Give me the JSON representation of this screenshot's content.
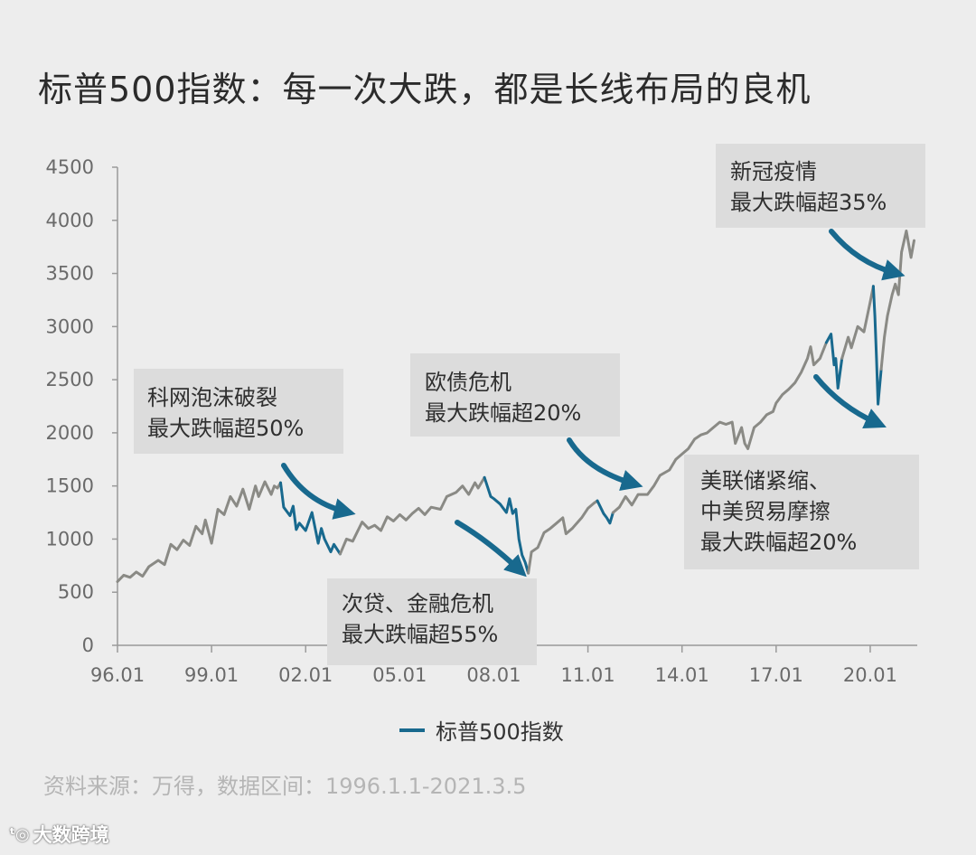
{
  "title": "标普500指数：每一次大跌，都是长线布局的良机",
  "source": "资料来源：万得，数据区间：1996.1.1-2021.3.5",
  "watermark": {
    "logo": "ᵗ◎",
    "text": "大数跨境"
  },
  "colors": {
    "background": "#ededed",
    "line": "#8a8a85",
    "crash": "#18698e",
    "box": "#dcdcdc",
    "arrow": "#18698e"
  },
  "chart_data": {
    "type": "line",
    "title": "标普500指数：每一次大跌，都是长线布局的良机",
    "xlabel": "",
    "ylabel": "",
    "xlim": [
      1996.0,
      2021.5
    ],
    "ylim": [
      0,
      4500
    ],
    "yticks": [
      0,
      500,
      1000,
      1500,
      2000,
      2500,
      3000,
      3500,
      4000,
      4500
    ],
    "xticks": [
      {
        "value": 1996.0,
        "label": "96.01"
      },
      {
        "value": 1999.0,
        "label": "99.01"
      },
      {
        "value": 2002.0,
        "label": "02.01"
      },
      {
        "value": 2005.0,
        "label": "05.01"
      },
      {
        "value": 2008.0,
        "label": "08.01"
      },
      {
        "value": 2011.0,
        "label": "11.01"
      },
      {
        "value": 2014.0,
        "label": "14.01"
      },
      {
        "value": 2017.0,
        "label": "17.01"
      },
      {
        "value": 2020.0,
        "label": "20.01"
      }
    ],
    "legend": {
      "label": "标普500指数",
      "position": "bottom-center"
    },
    "series": [
      {
        "name": "标普500指数",
        "points": [
          [
            1996.0,
            600
          ],
          [
            1996.2,
            660
          ],
          [
            1996.4,
            640
          ],
          [
            1996.6,
            690
          ],
          [
            1996.8,
            650
          ],
          [
            1997.0,
            740
          ],
          [
            1997.3,
            800
          ],
          [
            1997.5,
            760
          ],
          [
            1997.7,
            950
          ],
          [
            1997.9,
            900
          ],
          [
            1998.1,
            990
          ],
          [
            1998.3,
            940
          ],
          [
            1998.5,
            1120
          ],
          [
            1998.7,
            1050
          ],
          [
            1998.8,
            1180
          ],
          [
            1999.0,
            960
          ],
          [
            1999.2,
            1280
          ],
          [
            1999.4,
            1230
          ],
          [
            1999.6,
            1400
          ],
          [
            1999.8,
            1310
          ],
          [
            2000.0,
            1470
          ],
          [
            2000.2,
            1280
          ],
          [
            2000.4,
            1500
          ],
          [
            2000.5,
            1400
          ],
          [
            2000.7,
            1540
          ],
          [
            2000.9,
            1420
          ],
          [
            2001.0,
            1500
          ],
          [
            2001.1,
            1480
          ],
          [
            2001.2,
            1530
          ],
          [
            2001.3,
            1300
          ],
          [
            2001.5,
            1220
          ],
          [
            2001.6,
            1310
          ],
          [
            2001.7,
            1090
          ],
          [
            2001.8,
            1150
          ],
          [
            2002.0,
            1080
          ],
          [
            2002.2,
            1250
          ],
          [
            2002.4,
            960
          ],
          [
            2002.5,
            1100
          ],
          [
            2002.6,
            1000
          ],
          [
            2002.8,
            880
          ],
          [
            2002.9,
            950
          ],
          [
            2003.1,
            860
          ],
          [
            2003.3,
            1000
          ],
          [
            2003.5,
            980
          ],
          [
            2003.8,
            1160
          ],
          [
            2004.0,
            1100
          ],
          [
            2004.2,
            1130
          ],
          [
            2004.4,
            1080
          ],
          [
            2004.6,
            1210
          ],
          [
            2004.8,
            1170
          ],
          [
            2005.0,
            1230
          ],
          [
            2005.2,
            1180
          ],
          [
            2005.4,
            1240
          ],
          [
            2005.6,
            1290
          ],
          [
            2005.8,
            1230
          ],
          [
            2006.0,
            1300
          ],
          [
            2006.3,
            1280
          ],
          [
            2006.5,
            1400
          ],
          [
            2006.8,
            1440
          ],
          [
            2007.0,
            1500
          ],
          [
            2007.2,
            1420
          ],
          [
            2007.4,
            1530
          ],
          [
            2007.5,
            1480
          ],
          [
            2007.7,
            1580
          ],
          [
            2007.9,
            1400
          ],
          [
            2008.0,
            1380
          ],
          [
            2008.2,
            1330
          ],
          [
            2008.4,
            1250
          ],
          [
            2008.5,
            1380
          ],
          [
            2008.6,
            1240
          ],
          [
            2008.7,
            1280
          ],
          [
            2008.8,
            1000
          ],
          [
            2008.9,
            850
          ],
          [
            2009.0,
            780
          ],
          [
            2009.1,
            680
          ],
          [
            2009.2,
            880
          ],
          [
            2009.4,
            920
          ],
          [
            2009.6,
            1060
          ],
          [
            2009.8,
            1100
          ],
          [
            2010.0,
            1150
          ],
          [
            2010.2,
            1200
          ],
          [
            2010.3,
            1050
          ],
          [
            2010.5,
            1100
          ],
          [
            2010.8,
            1200
          ],
          [
            2011.0,
            1290
          ],
          [
            2011.2,
            1340
          ],
          [
            2011.3,
            1360
          ],
          [
            2011.4,
            1300
          ],
          [
            2011.5,
            1240
          ],
          [
            2011.6,
            1200
          ],
          [
            2011.7,
            1150
          ],
          [
            2011.8,
            1250
          ],
          [
            2012.0,
            1300
          ],
          [
            2012.2,
            1400
          ],
          [
            2012.4,
            1320
          ],
          [
            2012.6,
            1420
          ],
          [
            2012.9,
            1420
          ],
          [
            2013.1,
            1500
          ],
          [
            2013.3,
            1600
          ],
          [
            2013.6,
            1650
          ],
          [
            2013.8,
            1750
          ],
          [
            2014.0,
            1800
          ],
          [
            2014.2,
            1850
          ],
          [
            2014.4,
            1940
          ],
          [
            2014.6,
            1980
          ],
          [
            2014.8,
            2000
          ],
          [
            2015.0,
            2050
          ],
          [
            2015.2,
            2100
          ],
          [
            2015.4,
            2080
          ],
          [
            2015.6,
            2100
          ],
          [
            2015.7,
            1900
          ],
          [
            2015.9,
            2050
          ],
          [
            2016.0,
            1900
          ],
          [
            2016.1,
            1850
          ],
          [
            2016.3,
            2050
          ],
          [
            2016.5,
            2100
          ],
          [
            2016.7,
            2170
          ],
          [
            2016.9,
            2200
          ],
          [
            2017.0,
            2280
          ],
          [
            2017.2,
            2360
          ],
          [
            2017.4,
            2410
          ],
          [
            2017.6,
            2470
          ],
          [
            2017.8,
            2570
          ],
          [
            2018.0,
            2700
          ],
          [
            2018.1,
            2810
          ],
          [
            2018.2,
            2640
          ],
          [
            2018.4,
            2700
          ],
          [
            2018.6,
            2850
          ],
          [
            2018.75,
            2930
          ],
          [
            2018.85,
            2640
          ],
          [
            2018.9,
            2700
          ],
          [
            2018.97,
            2420
          ],
          [
            2019.1,
            2700
          ],
          [
            2019.3,
            2900
          ],
          [
            2019.4,
            2800
          ],
          [
            2019.6,
            3000
          ],
          [
            2019.8,
            2950
          ],
          [
            2020.0,
            3230
          ],
          [
            2020.1,
            3380
          ],
          [
            2020.15,
            3100
          ],
          [
            2020.2,
            2700
          ],
          [
            2020.25,
            2270
          ],
          [
            2020.35,
            2600
          ],
          [
            2020.45,
            2900
          ],
          [
            2020.55,
            3100
          ],
          [
            2020.7,
            3300
          ],
          [
            2020.8,
            3400
          ],
          [
            2020.9,
            3300
          ],
          [
            2021.0,
            3700
          ],
          [
            2021.15,
            3900
          ],
          [
            2021.3,
            3650
          ],
          [
            2021.4,
            3810
          ]
        ],
        "segment_colors": [
          {
            "from": 1996.0,
            "to": 2001.2,
            "color": "#8a8a85"
          },
          {
            "from": 2001.2,
            "to": 2003.1,
            "color": "#18698e"
          },
          {
            "from": 2003.1,
            "to": 2007.7,
            "color": "#8a8a85"
          },
          {
            "from": 2007.7,
            "to": 2009.1,
            "color": "#18698e"
          },
          {
            "from": 2009.1,
            "to": 2011.3,
            "color": "#8a8a85"
          },
          {
            "from": 2011.3,
            "to": 2011.8,
            "color": "#18698e"
          },
          {
            "from": 2011.8,
            "to": 2018.6,
            "color": "#8a8a85"
          },
          {
            "from": 2018.6,
            "to": 2019.1,
            "color": "#18698e"
          },
          {
            "from": 2019.1,
            "to": 2020.1,
            "color": "#8a8a85"
          },
          {
            "from": 2020.1,
            "to": 2020.35,
            "color": "#18698e"
          },
          {
            "from": 2020.35,
            "to": 2021.4,
            "color": "#8a8a85"
          }
        ]
      }
    ],
    "annotations": [
      {
        "lines": [
          "科网泡沫破裂",
          "最大跌幅超50%"
        ]
      },
      {
        "lines": [
          "次贷、金融危机",
          "最大跌幅超55%"
        ]
      },
      {
        "lines": [
          "欧债危机",
          "最大跌幅超20%"
        ]
      },
      {
        "lines": [
          "美联储紧缩、",
          "中美贸易摩擦",
          "最大跌幅超20%"
        ]
      },
      {
        "lines": [
          "新冠疫情",
          "最大跌幅超35%"
        ]
      }
    ]
  }
}
